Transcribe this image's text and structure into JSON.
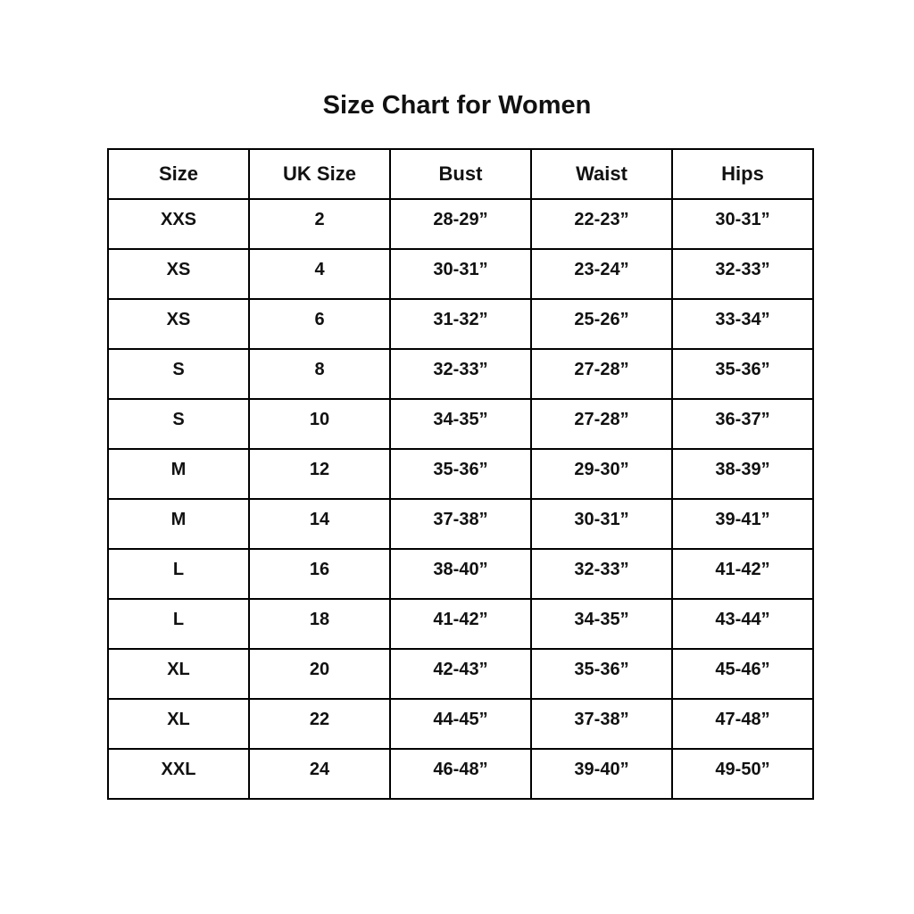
{
  "title": "Size Chart for Women",
  "colors": {
    "background": "#ffffff",
    "text": "#111111",
    "border": "#000000"
  },
  "chart_data": {
    "type": "table",
    "title": "Size Chart for Women",
    "columns": [
      "Size",
      "UK Size",
      "Bust",
      "Waist",
      "Hips"
    ],
    "rows": [
      [
        "XXS",
        "2",
        "28-29”",
        "22-23”",
        "30-31”"
      ],
      [
        "XS",
        "4",
        "30-31”",
        "23-24”",
        "32-33”"
      ],
      [
        "XS",
        "6",
        "31-32”",
        "25-26”",
        "33-34”"
      ],
      [
        "S",
        "8",
        "32-33”",
        "27-28”",
        "35-36”"
      ],
      [
        "S",
        "10",
        "34-35”",
        "27-28”",
        "36-37”"
      ],
      [
        "M",
        "12",
        "35-36”",
        "29-30”",
        "38-39”"
      ],
      [
        "M",
        "14",
        "37-38”",
        "30-31”",
        "39-41”"
      ],
      [
        "L",
        "16",
        "38-40”",
        "32-33”",
        "41-42”"
      ],
      [
        "L",
        "18",
        "41-42”",
        "34-35”",
        "43-44”"
      ],
      [
        "XL",
        "20",
        "42-43”",
        "35-36”",
        "45-46”"
      ],
      [
        "XL",
        "22",
        "44-45”",
        "37-38”",
        "47-48”"
      ],
      [
        "XXL",
        "24",
        "46-48”",
        "39-40”",
        "49-50”"
      ]
    ]
  }
}
